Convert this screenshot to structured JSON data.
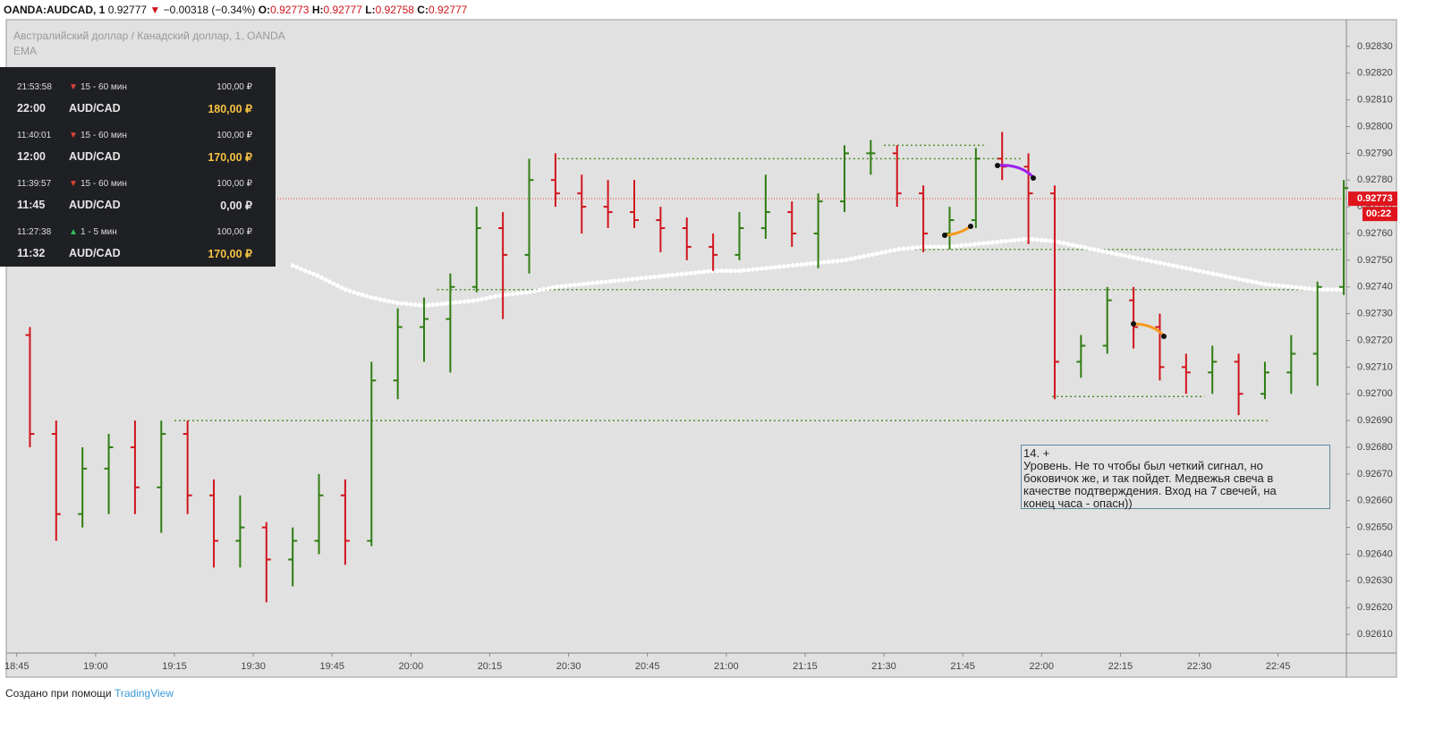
{
  "header": {
    "symbol": "OANDA:AUDCAD, 1",
    "price": "0.92777",
    "arrow": "▼",
    "change": "−0.00318 (−0.34%)",
    "o_label": "O:",
    "o": "0.92773",
    "h_label": "H:",
    "h": "0.92777",
    "l_label": "L:",
    "l": "0.92758",
    "c_label": "C:",
    "c": "0.92777"
  },
  "trades": [
    {
      "time": "21:53:58",
      "direction": "▼",
      "duration": "15 - 60 мин",
      "amount": "100,00 ₽",
      "expiry": "22:00",
      "pair": "AUD/CAD",
      "payout": "180,00 ₽"
    },
    {
      "time": "11:40:01",
      "direction": "▼",
      "duration": "15 - 60 мин",
      "amount": "100,00 ₽",
      "expiry": "12:00",
      "pair": "AUD/CAD",
      "payout": "170,00 ₽"
    },
    {
      "time": "11:39:57",
      "direction": "▼",
      "duration": "15 - 60 мин",
      "amount": "100,00 ₽",
      "expiry": "11:45",
      "pair": "AUD/CAD",
      "payout": "0,00 ₽"
    },
    {
      "time": "11:27:38",
      "direction": "▲",
      "duration": "1 - 5 мин",
      "amount": "100,00 ₽",
      "expiry": "11:32",
      "pair": "AUD/CAD",
      "payout": "170,00 ₽"
    }
  ],
  "annotation": {
    "lines": [
      "14. +",
      "Уровень. Не то чтобы был четкий сигнал, но",
      "боковичок же, и так пойдет. Медвежья свеча в",
      "качестве подтверждения. Вход на 7 свечей, на",
      "конец часа - опасн))"
    ]
  },
  "footer": {
    "text": "Создано при помощи",
    "brand": "TradingView"
  },
  "chart_data": {
    "type": "ohlc",
    "title": "Австралийский доллар / Канадский доллар, 1, OANDA",
    "indicator": "EMA",
    "up_color": "#2e7d12",
    "down_color": "#d0141c",
    "x": [
      "18:45",
      "18:50",
      "18:55",
      "19:00",
      "19:05",
      "19:10",
      "19:15",
      "19:20",
      "19:25",
      "19:30",
      "19:35",
      "19:40",
      "19:45",
      "19:50",
      "19:55",
      "20:00",
      "20:05",
      "20:10",
      "20:15",
      "20:20",
      "20:25",
      "20:30",
      "20:35",
      "20:40",
      "20:45",
      "20:50",
      "20:55",
      "21:00",
      "21:05",
      "21:10",
      "21:15",
      "21:20",
      "21:25",
      "21:30",
      "21:35",
      "21:40",
      "21:45",
      "21:50",
      "21:55",
      "22:00",
      "22:05",
      "22:10",
      "22:15",
      "22:20",
      "22:25",
      "22:30",
      "22:35",
      "22:40",
      "22:45",
      "22:50",
      "22:55"
    ],
    "open": [
      0.92722,
      0.92685,
      0.92655,
      0.92672,
      0.9268,
      0.92665,
      0.92685,
      0.92662,
      0.92645,
      0.9265,
      0.92638,
      0.92645,
      0.92662,
      0.92645,
      0.92705,
      0.92725,
      0.92728,
      0.9274,
      0.92762,
      0.92752,
      0.9278,
      0.92775,
      0.9277,
      0.92768,
      0.92765,
      0.92762,
      0.92755,
      0.92752,
      0.92762,
      0.92768,
      0.9276,
      0.92772,
      0.9279,
      0.9279,
      0.92775,
      0.9276,
      0.92765,
      0.92788,
      0.92785,
      0.92775,
      0.92712,
      0.92718,
      0.92735,
      0.92725,
      0.9271,
      0.92708,
      0.92712,
      0.927,
      0.92708,
      0.92715,
      0.9274
    ],
    "high": [
      0.92725,
      0.9269,
      0.9268,
      0.92685,
      0.9269,
      0.9269,
      0.9269,
      0.92668,
      0.92662,
      0.92652,
      0.9265,
      0.9267,
      0.92668,
      0.92712,
      0.92732,
      0.92736,
      0.92745,
      0.9277,
      0.92768,
      0.92788,
      0.9279,
      0.92782,
      0.9278,
      0.9278,
      0.9277,
      0.92766,
      0.9276,
      0.92768,
      0.92782,
      0.92772,
      0.92775,
      0.92793,
      0.92795,
      0.92793,
      0.92778,
      0.9277,
      0.92792,
      0.92798,
      0.9279,
      0.92778,
      0.92722,
      0.9274,
      0.9274,
      0.9273,
      0.92715,
      0.92718,
      0.92715,
      0.92712,
      0.92722,
      0.92742,
      0.9278
    ],
    "low": [
      0.9268,
      0.92645,
      0.9265,
      0.92655,
      0.92655,
      0.92648,
      0.92655,
      0.92635,
      0.92635,
      0.92622,
      0.92628,
      0.9264,
      0.92636,
      0.92643,
      0.92698,
      0.92712,
      0.92708,
      0.92738,
      0.92728,
      0.92745,
      0.9277,
      0.9276,
      0.92762,
      0.92762,
      0.92753,
      0.9275,
      0.92746,
      0.9275,
      0.92758,
      0.92755,
      0.92747,
      0.92768,
      0.92782,
      0.9277,
      0.92753,
      0.92754,
      0.92762,
      0.9278,
      0.92756,
      0.92698,
      0.92706,
      0.92715,
      0.92717,
      0.92705,
      0.927,
      0.927,
      0.92692,
      0.92698,
      0.927,
      0.92703,
      0.92737
    ],
    "close": [
      0.92685,
      0.92655,
      0.92672,
      0.9268,
      0.92665,
      0.92685,
      0.92662,
      0.92645,
      0.9265,
      0.92638,
      0.92645,
      0.92662,
      0.92645,
      0.92705,
      0.92725,
      0.92728,
      0.9274,
      0.92762,
      0.92752,
      0.9278,
      0.92775,
      0.9277,
      0.92768,
      0.92765,
      0.92762,
      0.92755,
      0.92752,
      0.92762,
      0.92768,
      0.9276,
      0.92772,
      0.9279,
      0.9279,
      0.92775,
      0.9276,
      0.92765,
      0.92788,
      0.92785,
      0.92775,
      0.92712,
      0.92718,
      0.92735,
      0.92725,
      0.9271,
      0.92708,
      0.92712,
      0.927,
      0.92708,
      0.92715,
      0.9274,
      0.92777
    ],
    "ema": [
      null,
      null,
      null,
      null,
      null,
      null,
      null,
      null,
      null,
      null,
      0.92748,
      0.92744,
      0.92739,
      0.92736,
      0.92734,
      0.92733,
      0.92734,
      0.92735,
      0.92737,
      0.92738,
      0.9274,
      0.92741,
      0.92742,
      0.92743,
      0.92744,
      0.92745,
      0.92746,
      0.92746,
      0.92747,
      0.92748,
      0.92749,
      0.9275,
      0.92752,
      0.92754,
      0.92755,
      0.92755,
      0.92756,
      0.92757,
      0.92758,
      0.92757,
      0.92755,
      0.92753,
      0.92751,
      0.92749,
      0.92747,
      0.92745,
      0.92743,
      0.92741,
      0.9274,
      0.92739,
      0.92739
    ],
    "levels": [
      {
        "value": 0.92788,
        "from": "20:28",
        "to": "21:56"
      },
      {
        "value": 0.92793,
        "from": "21:30",
        "to": "21:49"
      },
      {
        "value": 0.92754,
        "from": "21:36",
        "to": "22:57"
      },
      {
        "value": 0.92739,
        "from": "20:05",
        "to": "22:54"
      },
      {
        "value": 0.9269,
        "from": "19:15",
        "to": "22:43"
      },
      {
        "value": 0.92699,
        "from": "22:02",
        "to": "22:31"
      }
    ],
    "last_price": 0.92773,
    "countdown": "00:22",
    "xlim": [
      "18:43",
      "22:58"
    ],
    "xticks": [
      "18:45",
      "19:00",
      "19:15",
      "19:30",
      "19:45",
      "20:00",
      "20:15",
      "20:30",
      "20:45",
      "21:00",
      "21:15",
      "21:30",
      "21:45",
      "22:00",
      "22:15",
      "22:30",
      "22:45"
    ],
    "ylim": [
      0.92603,
      0.9284
    ],
    "yticks": [
      {
        "value": 0.9261,
        "label": "0.92610"
      },
      {
        "value": 0.9262,
        "label": "0.92620"
      },
      {
        "value": 0.9263,
        "label": "0.92630"
      },
      {
        "value": 0.9264,
        "label": "0.92640"
      },
      {
        "value": 0.9265,
        "label": "0.92650"
      },
      {
        "value": 0.9266,
        "label": "0.92660"
      },
      {
        "value": 0.9267,
        "label": "0.92670"
      },
      {
        "value": 0.9268,
        "label": "0.92680"
      },
      {
        "value": 0.9269,
        "label": "0.92690"
      },
      {
        "value": 0.927,
        "label": "0.92700"
      },
      {
        "value": 0.9271,
        "label": "0.92710"
      },
      {
        "value": 0.9272,
        "label": "0.92720"
      },
      {
        "value": 0.9273,
        "label": "0.92730"
      },
      {
        "value": 0.9274,
        "label": "0.92740"
      },
      {
        "value": 0.9275,
        "label": "0.92750"
      },
      {
        "value": 0.9276,
        "label": "0.92760"
      },
      {
        "value": 0.9277,
        "label": "0.92770"
      },
      {
        "value": 0.9278,
        "label": "0.92780"
      },
      {
        "value": 0.9279,
        "label": "0.92790"
      },
      {
        "value": 0.928,
        "label": "0.92800"
      },
      {
        "value": 0.9281,
        "label": "0.92810"
      },
      {
        "value": 0.9282,
        "label": "0.92820"
      },
      {
        "value": 0.9283,
        "label": "0.92830"
      }
    ],
    "grid": false
  }
}
